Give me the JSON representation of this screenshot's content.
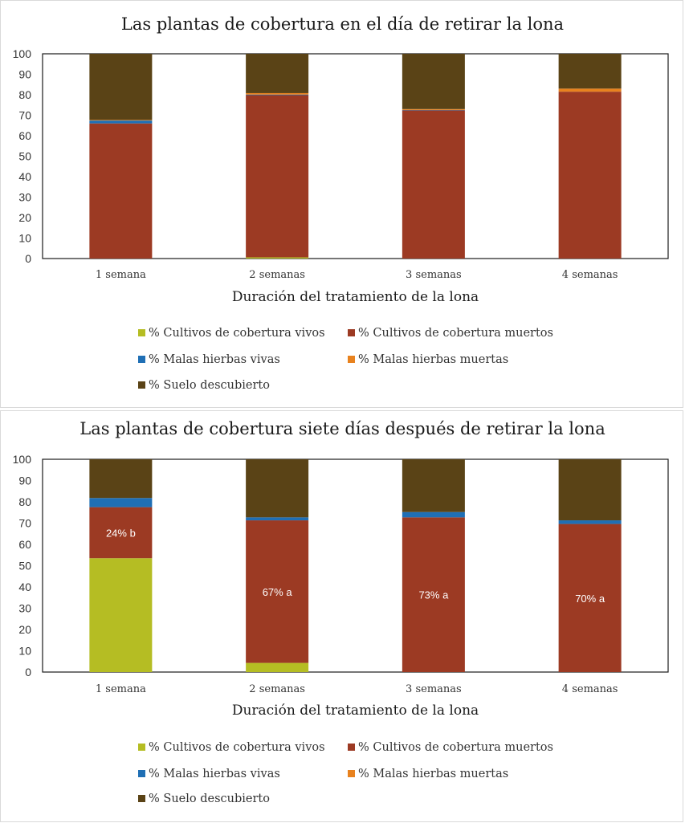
{
  "colors": {
    "cc_live": "#b5bd23",
    "cc_dead": "#9c3a23",
    "weed_live": "#1f6fb5",
    "weed_dead": "#e8821e",
    "bare": "#5a4316"
  },
  "chart_data": [
    {
      "type": "bar",
      "stacked": true,
      "title": "Las plantas de cobertura en el día de retirar la lona",
      "xlabel": "Duración del tratamiento de la lona",
      "ylabel": "",
      "ylim": [
        0,
        100
      ],
      "yticks": [
        "0",
        "10",
        "20",
        "30",
        "40",
        "50",
        "60",
        "70",
        "80",
        "90",
        "100"
      ],
      "categories": [
        "1 semana",
        "2 semanas",
        "3 semanas",
        "4 semanas"
      ],
      "grid": false,
      "legend_position": "bottom",
      "series": [
        {
          "name": "% Cultivos de cobertura vivos",
          "color_key": "cc_live",
          "values": [
            0,
            0.6,
            0,
            0
          ]
        },
        {
          "name": "% Cultivos de cobertura muertos",
          "color_key": "cc_dead",
          "values": [
            66,
            79.2,
            72.4,
            81.5
          ]
        },
        {
          "name": "% Malas hierbas vivas",
          "color_key": "weed_live",
          "values": [
            1.4,
            0.3,
            0.2,
            0
          ]
        },
        {
          "name": "% Malas hierbas muertas",
          "color_key": "weed_dead",
          "values": [
            0.3,
            0.7,
            0.4,
            1.5
          ]
        },
        {
          "name": "% Suelo descubierto",
          "color_key": "bare",
          "values": [
            32.3,
            19.2,
            27,
            17
          ]
        }
      ],
      "annotations": []
    },
    {
      "type": "bar",
      "stacked": true,
      "title": "Las plantas de cobertura siete días después de retirar la lona",
      "xlabel": "Duración del tratamiento de la lona",
      "ylabel": "",
      "ylim": [
        0,
        100
      ],
      "yticks": [
        "0",
        "10",
        "20",
        "30",
        "40",
        "50",
        "60",
        "70",
        "80",
        "90",
        "100"
      ],
      "categories": [
        "1 semana",
        "2 semanas",
        "3 semanas",
        "4 semanas"
      ],
      "grid": false,
      "legend_position": "bottom",
      "series": [
        {
          "name": "% Cultivos de cobertura vivos",
          "color_key": "cc_live",
          "values": [
            53.5,
            4.3,
            0,
            0
          ]
        },
        {
          "name": "% Cultivos de cobertura muertos",
          "color_key": "cc_dead",
          "values": [
            24,
            67,
            72.7,
            69.6
          ]
        },
        {
          "name": "% Malas hierbas vivas",
          "color_key": "weed_live",
          "values": [
            4.3,
            1.4,
            2.5,
            1.7
          ]
        },
        {
          "name": "% Malas hierbas muertas",
          "color_key": "weed_dead",
          "values": [
            0,
            0,
            0,
            0
          ]
        },
        {
          "name": "% Suelo descubierto",
          "color_key": "bare",
          "values": [
            18.2,
            27.3,
            24.8,
            28.7
          ]
        }
      ],
      "annotations": [
        "24% b",
        "67% a",
        "73% a",
        "70% a"
      ]
    }
  ]
}
